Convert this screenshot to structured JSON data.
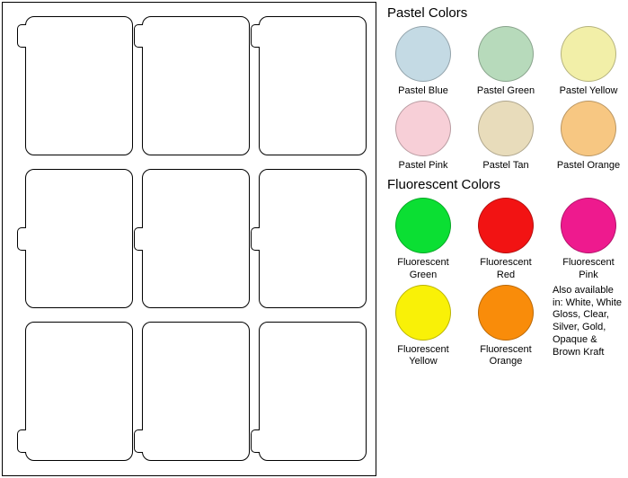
{
  "template": {
    "rows": 3,
    "cols": 3,
    "label_width": 120,
    "label_height": 155,
    "corner_radius": 10,
    "col_positions": [
      25,
      155,
      285
    ],
    "row_positions": [
      15,
      185,
      355
    ],
    "tab_row": [
      "top",
      "mid",
      "bot"
    ]
  },
  "sections": {
    "pastel": {
      "title": "Pastel Colors",
      "swatches": [
        {
          "label": "Pastel Blue",
          "color": "#c4dae4"
        },
        {
          "label": "Pastel Green",
          "color": "#b7dabb"
        },
        {
          "label": "Pastel Yellow",
          "color": "#f2efa8"
        },
        {
          "label": "Pastel Pink",
          "color": "#f7cfd7"
        },
        {
          "label": "Pastel Tan",
          "color": "#e8dcbb"
        },
        {
          "label": "Pastel Orange",
          "color": "#f7c782"
        }
      ]
    },
    "fluorescent": {
      "title": "Fluorescent Colors",
      "swatches": [
        {
          "label": "Fluorescent\nGreen",
          "color": "#0bdf33"
        },
        {
          "label": "Fluorescent\nRed",
          "color": "#f21313"
        },
        {
          "label": "Fluorescent\nPink",
          "color": "#ee1a8e"
        },
        {
          "label": "Fluorescent\nYellow",
          "color": "#f9f107"
        },
        {
          "label": "Fluorescent\nOrange",
          "color": "#f98c0a"
        }
      ],
      "extra_text": "Also available in: White, White Gloss, Clear, Silver, Gold, Opaque & Brown Kraft"
    }
  }
}
